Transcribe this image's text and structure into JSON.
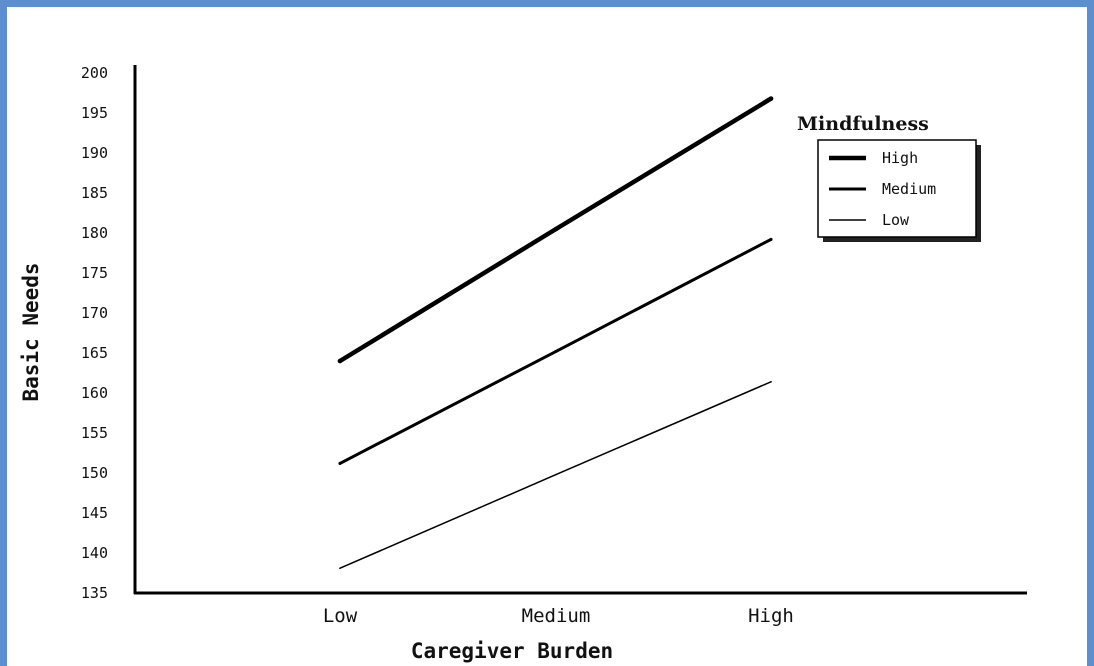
{
  "chart_data": {
    "type": "line",
    "categories": [
      "Low",
      "Medium",
      "High"
    ],
    "xlabel": "Caregiver Burden",
    "ylabel": "Basic Needs",
    "ylim": [
      135,
      200
    ],
    "yticks": [
      200,
      195,
      190,
      185,
      180,
      175,
      170,
      165,
      160,
      155,
      150,
      145,
      140,
      135
    ],
    "legend": {
      "title": "Mindfulness",
      "position": "top-right"
    },
    "grid": false,
    "series": [
      {
        "name": "High",
        "values": [
          164,
          180.5,
          196.8
        ],
        "stroke": 4.5
      },
      {
        "name": "Medium",
        "values": [
          151.2,
          165.2,
          179.2
        ],
        "stroke": 3
      },
      {
        "name": "Low",
        "values": [
          138.1,
          149.8,
          161.4
        ],
        "stroke": 1.5
      }
    ]
  }
}
